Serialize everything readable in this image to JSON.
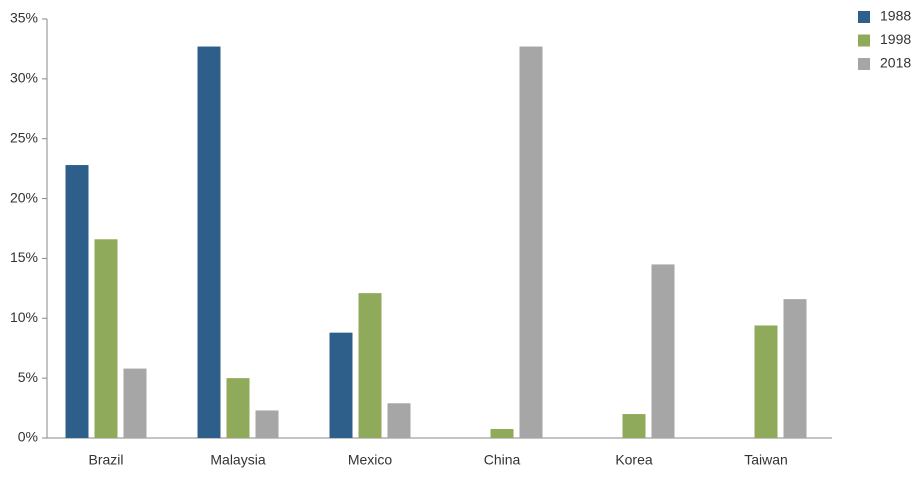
{
  "chart_data": {
    "type": "bar",
    "categories": [
      "Brazil",
      "Malaysia",
      "Mexico",
      "China",
      "Korea",
      "Taiwan"
    ],
    "series": [
      {
        "name": "1988",
        "color": "#2e5f8a",
        "values": [
          22.8,
          32.7,
          8.8,
          0,
          0,
          0
        ]
      },
      {
        "name": "1998",
        "color": "#8faa5a",
        "values": [
          16.6,
          5.0,
          12.1,
          0.75,
          2.0,
          9.4
        ]
      },
      {
        "name": "2018",
        "color": "#a6a6a6",
        "values": [
          5.8,
          2.3,
          2.9,
          32.7,
          14.5,
          11.6
        ]
      }
    ],
    "ylim": [
      0,
      35
    ],
    "yticks": [
      {
        "value": 0,
        "label": "0%"
      },
      {
        "value": 5,
        "label": "5%"
      },
      {
        "value": 10,
        "label": "10%"
      },
      {
        "value": 15,
        "label": "15%"
      },
      {
        "value": 20,
        "label": "20%"
      },
      {
        "value": 25,
        "label": "25%"
      },
      {
        "value": 30,
        "label": "30%"
      },
      {
        "value": 35,
        "label": "35%"
      }
    ],
    "legend": "top-right",
    "grid": false
  }
}
